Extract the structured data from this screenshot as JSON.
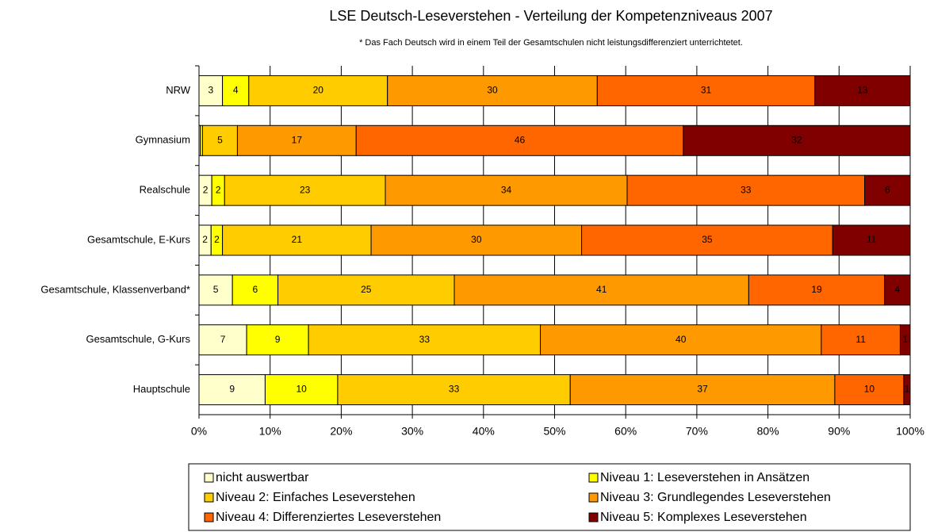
{
  "chart_data": {
    "type": "stacked-bar-horizontal",
    "title": "LSE Deutsch-Leseverstehen - Verteilung der Kompetenzniveaus  2007",
    "subtitle": "* Das Fach Deutsch wird in einem Teil der Gesamtschulen nicht leistungsdifferenziert unterrichtetet.",
    "categories": [
      "NRW",
      "Gymnasium",
      "Realschule",
      "Gesamtschule, E-Kurs",
      "Gesamtschule, Klassenverband*",
      "Gesamtschule, G-Kurs",
      "Hauptschule"
    ],
    "series": [
      {
        "name": "nicht auswertbar",
        "color": "#FFFFCC",
        "label_color": "#000000",
        "values": [
          3.3,
          0.2,
          1.8,
          1.7,
          4.7,
          6.7,
          9.3
        ],
        "value_labels": [
          "3",
          null,
          "2",
          "2",
          "5",
          "7",
          "9"
        ]
      },
      {
        "name": "Niveau 1: Leseverstehen in Ansätzen",
        "color": "#FFFF00",
        "label_color": "#000000",
        "values": [
          3.7,
          0.3,
          1.8,
          1.6,
          6.4,
          8.7,
          10.2
        ],
        "value_labels": [
          "4",
          null,
          "2",
          "2",
          "6",
          "9",
          "10"
        ]
      },
      {
        "name": "Niveau 2: Einfaches Leseverstehen",
        "color": "#FFCC00",
        "label_color": "#000000",
        "values": [
          19.5,
          4.9,
          22.6,
          20.9,
          24.8,
          32.6,
          32.7
        ],
        "value_labels": [
          "20",
          "5",
          "23",
          "21",
          "25",
          "33",
          "33"
        ]
      },
      {
        "name": "Niveau 3: Grundlegendes Leseverstehen",
        "color": "#FF9900",
        "label_color": "#000000",
        "values": [
          29.5,
          16.7,
          34.0,
          29.6,
          41.4,
          39.5,
          37.2
        ],
        "value_labels": [
          "30",
          "17",
          "34",
          "30",
          "41",
          "40",
          "37"
        ]
      },
      {
        "name": "Niveau 4: Differenziertes Leseverstehen",
        "color": "#FF6600",
        "label_color": "#FFFFFF",
        "values": [
          30.6,
          46.0,
          33.4,
          35.3,
          19.1,
          11.1,
          9.7
        ],
        "value_labels": [
          "31",
          "46",
          "33",
          "35",
          "19",
          "11",
          "10"
        ]
      },
      {
        "name": "Niveau 5: Komplexes Leseverstehen",
        "color": "#800000",
        "label_color": "#FFFFFF",
        "values": [
          13.4,
          31.9,
          6.4,
          10.9,
          3.6,
          1.4,
          0.9
        ],
        "value_labels": [
          "13",
          "32",
          "6",
          "11",
          "4",
          "1",
          "1"
        ]
      }
    ],
    "xlim": [
      0,
      100
    ],
    "xticks": [
      {
        "value": 0,
        "label": "0%"
      },
      {
        "value": 10,
        "label": "10%"
      },
      {
        "value": 20,
        "label": "20%"
      },
      {
        "value": 30,
        "label": "30%"
      },
      {
        "value": 40,
        "label": "40%"
      },
      {
        "value": 50,
        "label": "50%"
      },
      {
        "value": 60,
        "label": "60%"
      },
      {
        "value": 70,
        "label": "70%"
      },
      {
        "value": 80,
        "label": "80%"
      },
      {
        "value": 90,
        "label": "90%"
      },
      {
        "value": 100,
        "label": "100%"
      }
    ],
    "grid": true,
    "legend": "bottom"
  }
}
